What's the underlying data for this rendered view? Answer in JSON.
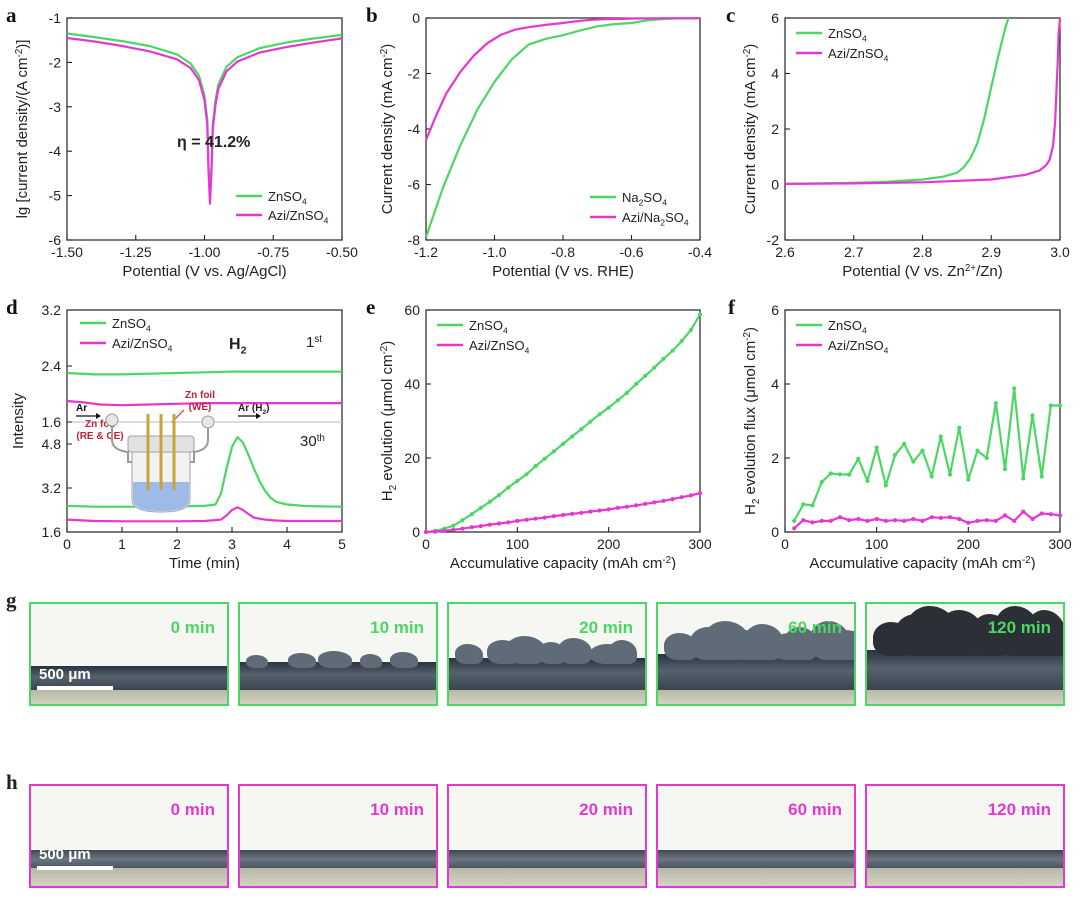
{
  "colors": {
    "green": "#4cd764",
    "magenta": "#e637d2",
    "axis": "#222222"
  },
  "chart_data": [
    {
      "id": "a",
      "type": "line",
      "panel_label": "a",
      "xlabel": "Potential (V vs. Ag/AgCl)",
      "ylabel_main": "lg [current density/(A cm",
      "ylabel_sup": "-2",
      "ylabel_end": ")]",
      "xlim": [
        -1.5,
        -0.5
      ],
      "ylim": [
        -6,
        -1
      ],
      "xticks": [
        -1.5,
        -1.25,
        -1.0,
        -0.75,
        -0.5
      ],
      "xtick_labels": [
        "-1.50",
        "-1.25",
        "-1.00",
        "-0.75",
        "-0.50"
      ],
      "yticks": [
        -6,
        -5,
        -4,
        -3,
        -2,
        -1
      ],
      "ytick_labels": [
        "-6",
        "-5",
        "-4",
        "-3",
        "-2",
        "-1"
      ],
      "annotation": {
        "prefix": "η",
        "text": " = 41.2%",
        "x": -1.1,
        "y": -3.9
      },
      "legend_position": "bottom-right",
      "series": [
        {
          "name": "ZnSO",
          "sub": "4",
          "color": "green",
          "x": [
            -1.5,
            -1.4,
            -1.3,
            -1.2,
            -1.1,
            -1.05,
            -1.02,
            -1.0,
            -0.99,
            -0.985,
            -0.98,
            -0.975,
            -0.97,
            -0.96,
            -0.95,
            -0.92,
            -0.88,
            -0.8,
            -0.7,
            -0.6,
            -0.5
          ],
          "y": [
            -1.35,
            -1.43,
            -1.52,
            -1.63,
            -1.82,
            -2.03,
            -2.3,
            -2.75,
            -3.3,
            -4.4,
            -5.0,
            -4.4,
            -3.4,
            -2.85,
            -2.5,
            -2.1,
            -1.88,
            -1.68,
            -1.55,
            -1.46,
            -1.38
          ]
        },
        {
          "name": "Azi/ZnSO",
          "sub": "4",
          "color": "magenta",
          "x": [
            -1.5,
            -1.4,
            -1.3,
            -1.2,
            -1.1,
            -1.05,
            -1.02,
            -1.0,
            -0.99,
            -0.985,
            -0.98,
            -0.975,
            -0.97,
            -0.96,
            -0.95,
            -0.92,
            -0.88,
            -0.8,
            -0.7,
            -0.6,
            -0.5
          ],
          "y": [
            -1.45,
            -1.53,
            -1.63,
            -1.75,
            -1.93,
            -2.13,
            -2.4,
            -2.85,
            -3.4,
            -4.5,
            -5.18,
            -4.5,
            -3.5,
            -2.95,
            -2.6,
            -2.2,
            -1.98,
            -1.78,
            -1.65,
            -1.55,
            -1.46
          ]
        }
      ]
    },
    {
      "id": "b",
      "type": "line",
      "panel_label": "b",
      "xlabel": "Potential (V vs. RHE)",
      "ylabel_main": "Current density (mA cm",
      "ylabel_sup": "-2",
      "ylabel_end": ")",
      "xlim": [
        -1.2,
        -0.4
      ],
      "ylim": [
        -8,
        0
      ],
      "xticks": [
        -1.2,
        -1.0,
        -0.8,
        -0.6,
        -0.4
      ],
      "xtick_labels": [
        "-1.2",
        "-1.0",
        "-0.8",
        "-0.6",
        "-0.4"
      ],
      "yticks": [
        -8,
        -6,
        -4,
        -2,
        0
      ],
      "ytick_labels": [
        "-8",
        "-6",
        "-4",
        "-2",
        "0"
      ],
      "legend_position": "bottom-right",
      "series": [
        {
          "name": "Na",
          "sub": "2",
          "name2": "SO",
          "sub2": "4",
          "color": "green",
          "x": [
            -1.2,
            -1.15,
            -1.1,
            -1.05,
            -1.0,
            -0.95,
            -0.9,
            -0.85,
            -0.8,
            -0.75,
            -0.7,
            -0.65,
            -0.6,
            -0.55,
            -0.5,
            -0.45,
            -0.4
          ],
          "y": [
            -7.9,
            -6.1,
            -4.6,
            -3.3,
            -2.3,
            -1.5,
            -0.95,
            -0.75,
            -0.62,
            -0.45,
            -0.3,
            -0.22,
            -0.18,
            -0.08,
            -0.03,
            -0.01,
            -0.01
          ]
        },
        {
          "name": "Azi/Na",
          "sub": "2",
          "name2": "SO",
          "sub2": "4",
          "color": "magenta",
          "x": [
            -1.2,
            -1.17,
            -1.14,
            -1.1,
            -1.06,
            -1.02,
            -0.98,
            -0.94,
            -0.9,
            -0.85,
            -0.8,
            -0.75,
            -0.7,
            -0.6,
            -0.5,
            -0.4
          ],
          "y": [
            -4.4,
            -3.5,
            -2.7,
            -1.95,
            -1.35,
            -0.9,
            -0.6,
            -0.42,
            -0.33,
            -0.25,
            -0.18,
            -0.1,
            -0.05,
            -0.02,
            -0.01,
            -0.01
          ]
        }
      ]
    },
    {
      "id": "c",
      "type": "line",
      "panel_label": "c",
      "xlabel_main": "Potential (V vs. Zn",
      "xlabel_sup": "2+",
      "xlabel_end": "/Zn)",
      "ylabel_main": "Current density (mA cm",
      "ylabel_sup": "-2",
      "ylabel_end": ")",
      "xlim": [
        2.6,
        3.0
      ],
      "ylim": [
        -2,
        6
      ],
      "xticks": [
        2.6,
        2.7,
        2.8,
        2.9,
        3.0
      ],
      "xtick_labels": [
        "2.6",
        "2.7",
        "2.8",
        "2.9",
        "3.0"
      ],
      "yticks": [
        -2,
        0,
        2,
        4,
        6
      ],
      "ytick_labels": [
        "-2",
        "0",
        "2",
        "4",
        "6"
      ],
      "legend_position": "top-left",
      "series": [
        {
          "name": "ZnSO",
          "sub": "4",
          "color": "green",
          "x": [
            2.6,
            2.7,
            2.75,
            2.8,
            2.83,
            2.85,
            2.86,
            2.87,
            2.88,
            2.89,
            2.9,
            2.91,
            2.92,
            2.925
          ],
          "y": [
            0.02,
            0.06,
            0.1,
            0.18,
            0.28,
            0.42,
            0.62,
            0.95,
            1.5,
            2.4,
            3.5,
            4.6,
            5.6,
            6.0
          ]
        },
        {
          "name": "Azi/ZnSO",
          "sub": "4",
          "color": "magenta",
          "x": [
            2.6,
            2.7,
            2.8,
            2.9,
            2.95,
            2.97,
            2.98,
            2.985,
            2.99,
            2.993,
            2.995,
            2.997,
            2.998,
            3.0
          ],
          "y": [
            0.02,
            0.04,
            0.08,
            0.18,
            0.35,
            0.5,
            0.7,
            0.9,
            1.4,
            2.3,
            3.5,
            4.6,
            5.4,
            6.0
          ]
        }
      ]
    },
    {
      "id": "d",
      "type": "line",
      "panel_label": "d",
      "xlabel": "Time (min)",
      "ylabel": "Intensity",
      "xlim": [
        0,
        5
      ],
      "xticks": [
        0,
        1,
        2,
        3,
        4,
        5
      ],
      "xtick_labels": [
        "0",
        "1",
        "2",
        "3",
        "4",
        "5"
      ],
      "top_ylim": [
        1.6,
        3.2
      ],
      "top_yticks": [
        1.6,
        2.4,
        3.2
      ],
      "top_ytick_labels": [
        "1.6",
        "2.4",
        "3.2"
      ],
      "bottom_ylim": [
        1.6,
        5.6
      ],
      "bottom_yticks": [
        1.6,
        3.2,
        4.8
      ],
      "bottom_ytick_labels": [
        "1.6",
        "3.2",
        "4.8"
      ],
      "title_main": "H",
      "title_sub": "2",
      "top_note_main": "1",
      "top_note_sup": "st",
      "bottom_note_main": "30",
      "bottom_note_sup": "th",
      "inset_labels": {
        "ar_in": "Ar",
        "ar_out": "Ar (H",
        "ar_out_sub": "2",
        "ar_out_end": ")",
        "we_line1": "Zn foil",
        "we_line2": "(WE)",
        "re_line1": "Zn foil",
        "re_line2": "(RE & CE)"
      },
      "legend_position": "top-left",
      "series": [
        {
          "name": "ZnSO",
          "sub": "4",
          "color": "green",
          "top_x": [
            0,
            0.5,
            1,
            1.5,
            2,
            2.5,
            3,
            3.5,
            4,
            4.5,
            5
          ],
          "top_y": [
            2.3,
            2.28,
            2.28,
            2.29,
            2.3,
            2.31,
            2.32,
            2.32,
            2.32,
            2.32,
            2.32
          ],
          "bottom_x": [
            0,
            0.5,
            1,
            1.5,
            2,
            2.5,
            2.7,
            2.8,
            2.9,
            3.0,
            3.1,
            3.2,
            3.3,
            3.4,
            3.5,
            3.6,
            3.7,
            3.8,
            4,
            4.3,
            4.6,
            5
          ],
          "bottom_y": [
            2.55,
            2.52,
            2.52,
            2.52,
            2.53,
            2.55,
            2.6,
            3.0,
            3.9,
            4.7,
            5.05,
            4.85,
            4.4,
            3.9,
            3.45,
            3.1,
            2.85,
            2.7,
            2.6,
            2.55,
            2.53,
            2.52
          ]
        },
        {
          "name": "Azi/ZnSO",
          "sub": "4",
          "color": "magenta",
          "top_x": [
            0,
            0.3,
            0.6,
            1,
            1.5,
            2,
            2.5,
            3,
            3.5,
            4,
            4.5,
            5
          ],
          "top_y": [
            1.9,
            1.88,
            1.85,
            1.84,
            1.85,
            1.86,
            1.87,
            1.87,
            1.87,
            1.87,
            1.87,
            1.87
          ],
          "bottom_x": [
            0,
            0.5,
            1,
            1.5,
            2,
            2.5,
            2.8,
            2.9,
            3.0,
            3.1,
            3.2,
            3.3,
            3.4,
            3.6,
            3.8,
            4,
            4.5,
            5
          ],
          "bottom_y": [
            2.05,
            2.0,
            1.99,
            1.99,
            1.99,
            2.0,
            2.05,
            2.2,
            2.4,
            2.5,
            2.4,
            2.25,
            2.12,
            2.05,
            2.02,
            2.0,
            2.0,
            2.0
          ]
        }
      ]
    },
    {
      "id": "e",
      "type": "line",
      "panel_label": "e",
      "xlabel_main": "Accumulative capacity (mAh cm",
      "xlabel_sup": "-2",
      "xlabel_end": ")",
      "ylabel_pre": "H",
      "ylabel_sub": "2",
      "ylabel_main": " evolution (μmol cm",
      "ylabel_sup": "-2",
      "ylabel_end": ")",
      "xlim": [
        0,
        300
      ],
      "ylim": [
        0,
        60
      ],
      "xticks": [
        0,
        100,
        200,
        300
      ],
      "xtick_labels": [
        "0",
        "100",
        "200",
        "300"
      ],
      "yticks": [
        0,
        20,
        40,
        60
      ],
      "ytick_labels": [
        "0",
        "20",
        "40",
        "60"
      ],
      "legend_position": "top-left",
      "series": [
        {
          "name": "ZnSO",
          "sub": "4",
          "color": "green",
          "x": [
            0,
            10,
            20,
            30,
            40,
            50,
            60,
            70,
            80,
            90,
            100,
            110,
            120,
            130,
            140,
            150,
            160,
            170,
            180,
            190,
            200,
            210,
            220,
            230,
            240,
            250,
            260,
            270,
            280,
            290,
            300
          ],
          "y": [
            0,
            0.3,
            0.9,
            1.7,
            3.2,
            4.8,
            6.5,
            8.2,
            10.0,
            12.0,
            13.8,
            15.6,
            17.8,
            19.8,
            21.8,
            23.8,
            25.8,
            27.8,
            29.8,
            31.8,
            33.6,
            35.6,
            37.6,
            40.0,
            42.2,
            44.4,
            46.8,
            49.0,
            51.6,
            54.6,
            58.8
          ]
        },
        {
          "name": "Azi/ZnSO",
          "sub": "4",
          "color": "magenta",
          "x": [
            0,
            10,
            20,
            30,
            40,
            50,
            60,
            70,
            80,
            90,
            100,
            110,
            120,
            130,
            140,
            150,
            160,
            170,
            180,
            190,
            200,
            210,
            220,
            230,
            240,
            250,
            260,
            270,
            280,
            290,
            300
          ],
          "y": [
            0,
            0.1,
            0.3,
            0.6,
            0.9,
            1.3,
            1.6,
            2.0,
            2.3,
            2.6,
            3.0,
            3.3,
            3.6,
            3.9,
            4.3,
            4.6,
            4.9,
            5.2,
            5.5,
            5.8,
            6.1,
            6.5,
            6.8,
            7.2,
            7.6,
            8.0,
            8.4,
            8.9,
            9.4,
            9.9,
            10.5
          ]
        }
      ]
    },
    {
      "id": "f",
      "type": "line",
      "panel_label": "f",
      "xlabel_main": "Accumulative capacity (mAh cm",
      "xlabel_sup": "-2",
      "xlabel_end": ")",
      "ylabel_pre": "H",
      "ylabel_sub": "2",
      "ylabel_main": " evolution flux (μmol cm",
      "ylabel_sup": "-2",
      "ylabel_end": ")",
      "xlim": [
        0,
        300
      ],
      "ylim": [
        0,
        6
      ],
      "xticks": [
        0,
        100,
        200,
        300
      ],
      "xtick_labels": [
        "0",
        "100",
        "200",
        "300"
      ],
      "yticks": [
        0,
        2,
        4,
        6
      ],
      "ytick_labels": [
        "0",
        "2",
        "4",
        "6"
      ],
      "legend_position": "top-left",
      "series": [
        {
          "name": "ZnSO",
          "sub": "4",
          "color": "green",
          "x": [
            10,
            20,
            30,
            40,
            50,
            60,
            70,
            80,
            90,
            100,
            110,
            120,
            130,
            140,
            150,
            160,
            170,
            180,
            190,
            200,
            210,
            220,
            230,
            240,
            250,
            260,
            270,
            280,
            290,
            300
          ],
          "y": [
            0.3,
            0.75,
            0.72,
            1.35,
            1.58,
            1.56,
            1.55,
            1.98,
            1.38,
            2.28,
            1.26,
            2.08,
            2.38,
            1.9,
            2.2,
            1.5,
            2.58,
            1.55,
            2.82,
            1.42,
            2.2,
            2.0,
            3.48,
            1.7,
            3.88,
            1.45,
            3.15,
            1.5,
            3.42,
            3.42
          ]
        },
        {
          "name": "Azi/ZnSO",
          "sub": "4",
          "color": "magenta",
          "x": [
            10,
            20,
            30,
            40,
            50,
            60,
            70,
            80,
            90,
            100,
            110,
            120,
            130,
            140,
            150,
            160,
            170,
            180,
            190,
            200,
            210,
            220,
            230,
            240,
            250,
            260,
            270,
            280,
            290,
            300
          ],
          "y": [
            0.1,
            0.32,
            0.26,
            0.3,
            0.3,
            0.4,
            0.32,
            0.35,
            0.3,
            0.35,
            0.3,
            0.32,
            0.3,
            0.35,
            0.3,
            0.4,
            0.38,
            0.4,
            0.35,
            0.25,
            0.3,
            0.32,
            0.3,
            0.45,
            0.3,
            0.55,
            0.35,
            0.5,
            0.48,
            0.45
          ]
        }
      ]
    }
  ],
  "micrographs": {
    "g": {
      "label": "g",
      "color": "green",
      "frames": [
        {
          "time": "0 min",
          "roughness": 0
        },
        {
          "time": "10 min",
          "roughness": 1
        },
        {
          "time": "20 min",
          "roughness": 2
        },
        {
          "time": "60 min",
          "roughness": 3
        },
        {
          "time": "120 min",
          "roughness": 4
        }
      ],
      "scale_label": "500 μm"
    },
    "h": {
      "label": "h",
      "color": "magenta",
      "frames": [
        {
          "time": "0 min",
          "roughness": 0
        },
        {
          "time": "10 min",
          "roughness": 0
        },
        {
          "time": "20 min",
          "roughness": 0
        },
        {
          "time": "60 min",
          "roughness": 0
        },
        {
          "time": "120 min",
          "roughness": 0
        }
      ],
      "scale_label": "500 μm"
    }
  }
}
